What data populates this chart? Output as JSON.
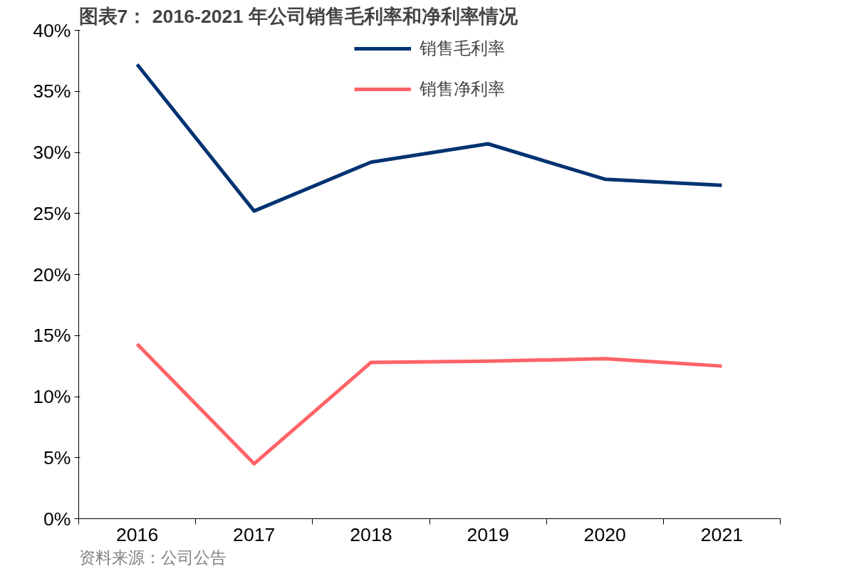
{
  "chart_data": {
    "type": "line",
    "title": "图表7： 2016-2021 年公司销售毛利率和净利率情况",
    "categories": [
      "2016",
      "2017",
      "2018",
      "2019",
      "2020",
      "2021"
    ],
    "series": [
      {
        "name": "销售毛利率",
        "color": "#003372",
        "values": [
          37.2,
          25.2,
          29.2,
          30.7,
          27.8,
          27.3
        ]
      },
      {
        "name": "销售净利率",
        "color": "#ff6366",
        "values": [
          14.3,
          4.5,
          12.8,
          12.9,
          13.1,
          12.5
        ]
      }
    ],
    "ylim": [
      0,
      40
    ],
    "yticks": [
      {
        "value": 0,
        "label": "0%"
      },
      {
        "value": 5,
        "label": "5%"
      },
      {
        "value": 10,
        "label": "10%"
      },
      {
        "value": 15,
        "label": "15%"
      },
      {
        "value": 20,
        "label": "20%"
      },
      {
        "value": 25,
        "label": "25%"
      },
      {
        "value": 30,
        "label": "30%"
      },
      {
        "value": 35,
        "label": "35%"
      },
      {
        "value": 40,
        "label": "40%"
      }
    ],
    "grid": false,
    "legend": "top",
    "marker": "none",
    "line_style": "solid",
    "annotations": [
      "资料来源：公司公告"
    ]
  }
}
